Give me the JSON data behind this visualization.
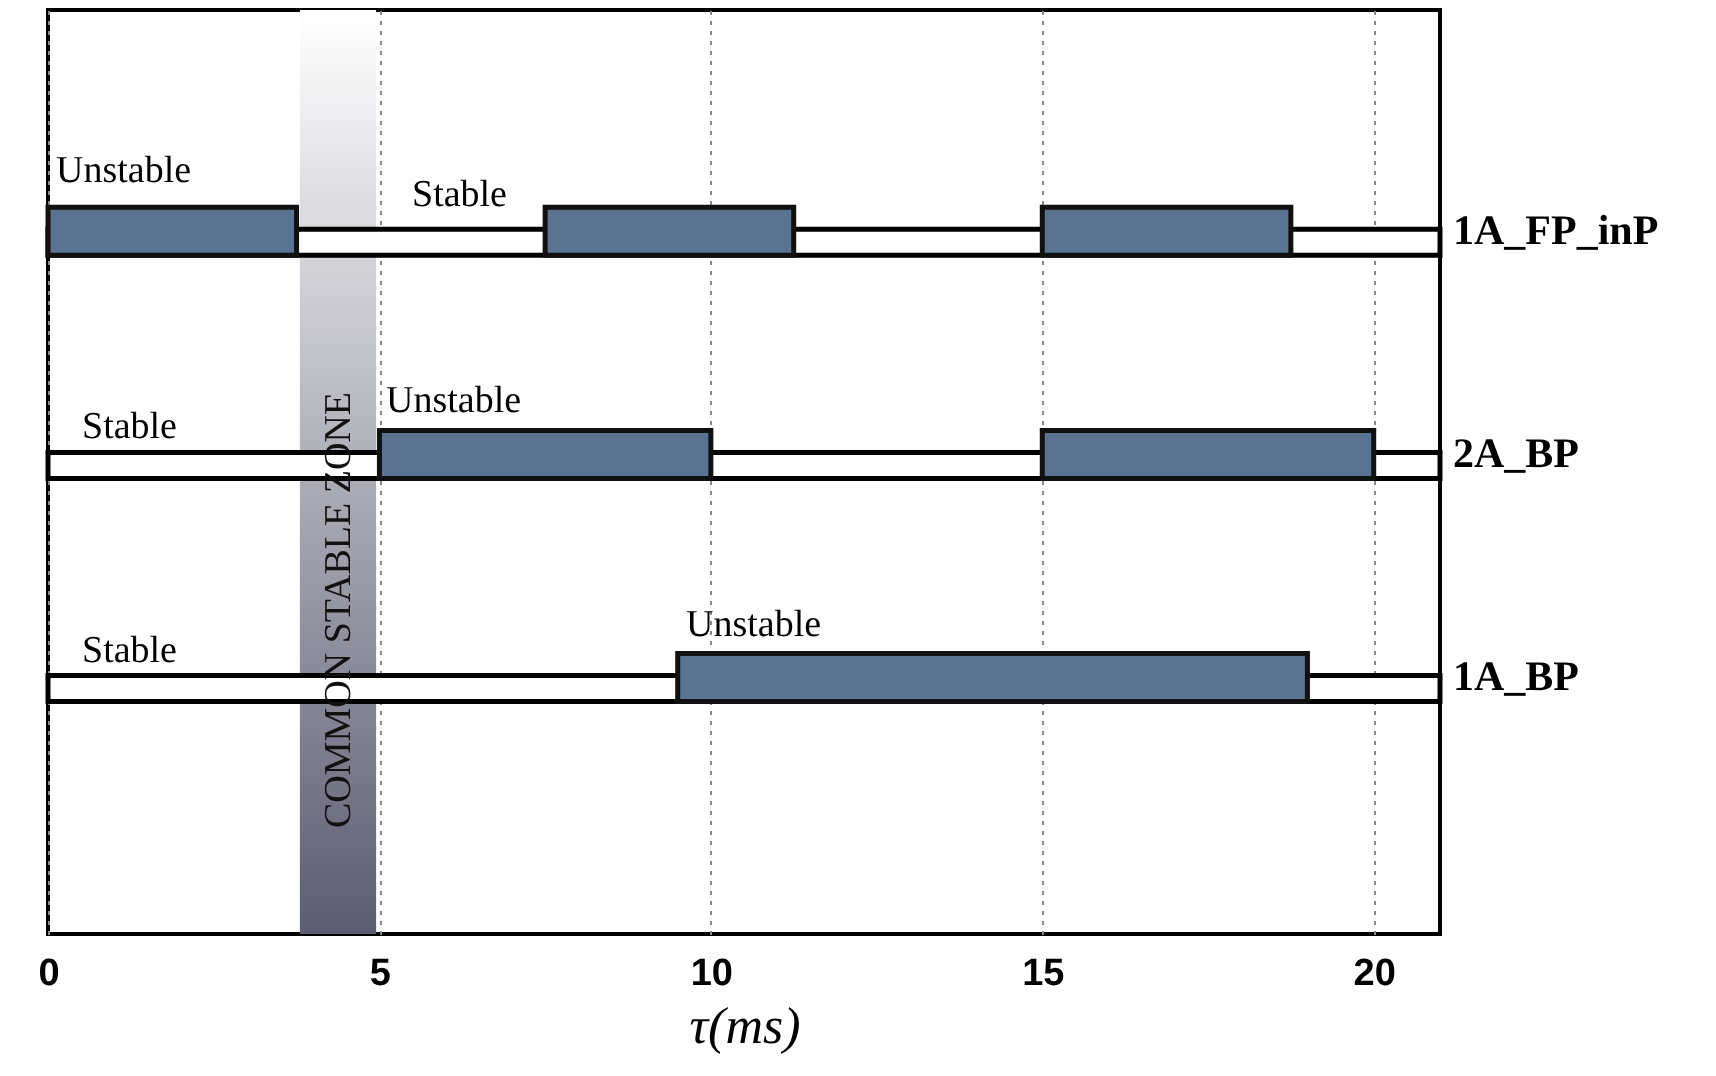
{
  "chart_data": {
    "type": "bar",
    "orientation": "horizontal",
    "xlabel": "τ(ms)",
    "categories": [
      "1A_FP_inP",
      "2A_BP",
      "1A_BP"
    ],
    "series": [
      {
        "color": "#ffffff",
        "base": [
          0,
          0,
          0
        ],
        "values": [
          21,
          21,
          21
        ]
      },
      {
        "color": "#5a7391",
        "base": [
          0,
          5,
          9.5
        ],
        "values": [
          3.75,
          5,
          9.5
        ]
      },
      {
        "color": "#5a7391",
        "base": [
          7.5,
          15,
          null
        ],
        "values": [
          3.75,
          5,
          null
        ]
      },
      {
        "color": "#5a7391",
        "base": [
          15,
          null,
          null
        ],
        "values": [
          3.75,
          null,
          null
        ]
      }
    ],
    "xlim": [
      0,
      21
    ],
    "xticks": [
      0,
      5,
      10,
      15,
      20
    ],
    "grid": "x",
    "bands": [
      {
        "axis": "x",
        "from": 3.8,
        "to": 4.95,
        "label": "COMMON STABLE ZONE",
        "color": "#5c5c70"
      }
    ],
    "annotations": [
      "Unstable",
      "Stable",
      "Stable",
      "Unstable",
      "Stable",
      "Unstable"
    ]
  }
}
